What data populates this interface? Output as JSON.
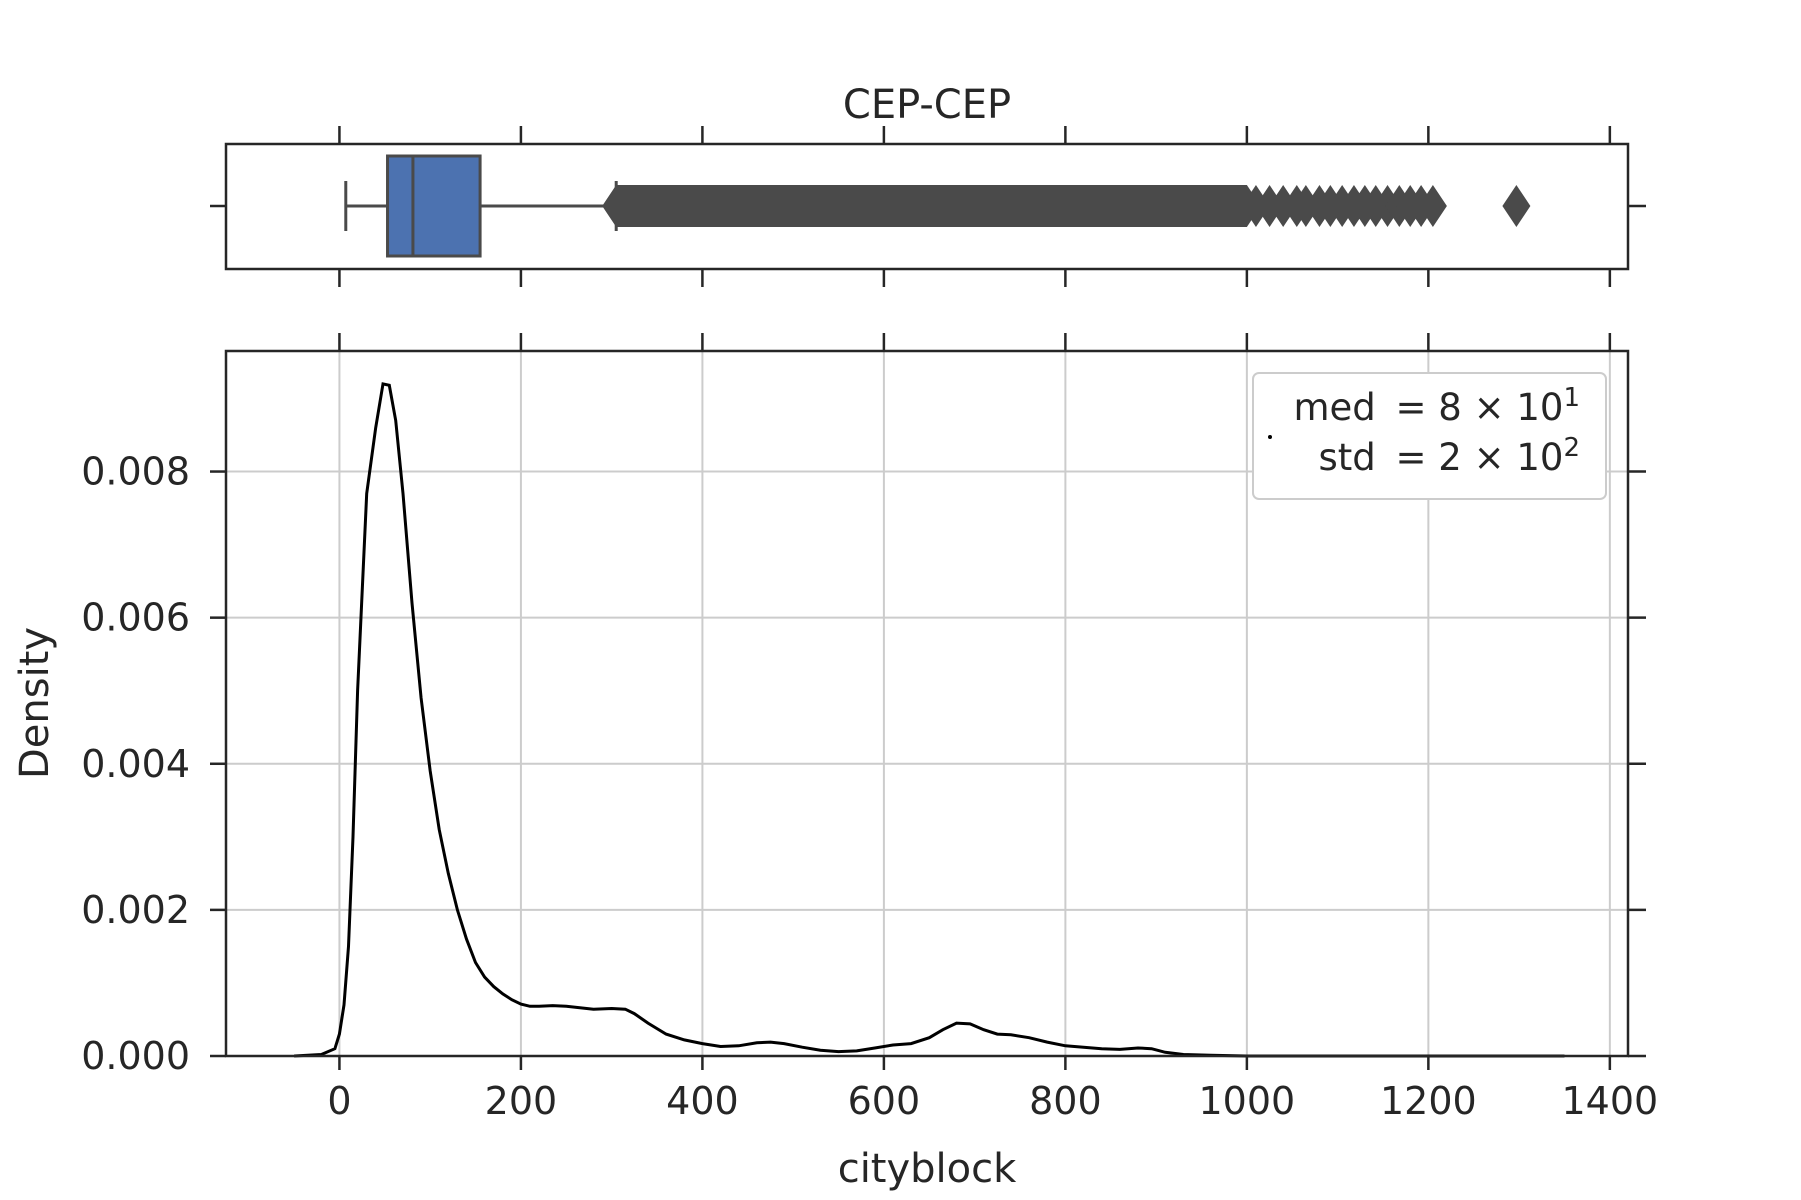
{
  "chart_data": {
    "type": "box-kde",
    "title": "CEP-CEP",
    "xlabel": "cityblock",
    "ylabel": "Density",
    "xlim": [
      -125,
      1420
    ],
    "ylim": [
      0,
      0.00965
    ],
    "x_ticks": [
      0,
      200,
      400,
      600,
      800,
      1000,
      1200,
      1400
    ],
    "y_ticks": [
      0.0,
      0.002,
      0.004,
      0.006,
      0.008
    ],
    "x_tick_labels": [
      "0",
      "200",
      "400",
      "600",
      "800",
      "1000",
      "1200",
      "1400"
    ],
    "y_tick_labels": [
      "0.000",
      "0.002",
      "0.004",
      "0.006",
      "0.008"
    ],
    "grid": true,
    "legend": {
      "placement": "top-right",
      "med": {
        "label": "med",
        "mantissa": "8",
        "exponent": "1"
      },
      "std": {
        "label": "std",
        "mantissa": "2",
        "exponent": "2"
      }
    },
    "boxplot": {
      "color": "#4c72b0",
      "whisker_low": 7,
      "q1": 53,
      "median": 81,
      "q3": 155,
      "whisker_high": 305,
      "outlier_band": [
        305,
        1000
      ],
      "outliers": [
        1010,
        1025,
        1040,
        1055,
        1065,
        1080,
        1092,
        1105,
        1118,
        1130,
        1142,
        1155,
        1168,
        1180,
        1192,
        1205,
        1297
      ]
    },
    "kde": {
      "x": [
        -50,
        -20,
        -5,
        0,
        5,
        10,
        15,
        20,
        30,
        40,
        48,
        55,
        62,
        70,
        80,
        90,
        100,
        110,
        120,
        130,
        140,
        150,
        160,
        170,
        180,
        190,
        200,
        210,
        220,
        235,
        250,
        265,
        280,
        300,
        315,
        325,
        340,
        360,
        380,
        400,
        420,
        440,
        460,
        475,
        490,
        510,
        530,
        550,
        570,
        590,
        610,
        630,
        650,
        665,
        680,
        695,
        710,
        725,
        740,
        760,
        780,
        800,
        820,
        840,
        860,
        880,
        895,
        910,
        930,
        960,
        1000,
        1100,
        1200,
        1300,
        1350
      ],
      "y": [
        0.0,
        2e-05,
        0.0001,
        0.0003,
        0.0007,
        0.0015,
        0.003,
        0.005,
        0.0077,
        0.0086,
        0.0092,
        0.00918,
        0.0087,
        0.0077,
        0.0062,
        0.0049,
        0.0039,
        0.0031,
        0.0025,
        0.002,
        0.0016,
        0.00128,
        0.00108,
        0.00095,
        0.00085,
        0.00077,
        0.00071,
        0.00068,
        0.00068,
        0.00069,
        0.00068,
        0.00066,
        0.00064,
        0.00065,
        0.00064,
        0.00058,
        0.00045,
        0.0003,
        0.00022,
        0.00017,
        0.00013,
        0.00014,
        0.00018,
        0.00019,
        0.00017,
        0.00012,
        8e-05,
        6e-05,
        7e-05,
        0.00011,
        0.00015,
        0.00017,
        0.00025,
        0.00036,
        0.00045,
        0.00044,
        0.00036,
        0.0003,
        0.00029,
        0.00025,
        0.00019,
        0.00014,
        0.00012,
        0.0001,
        9e-05,
        0.00011,
        0.0001,
        5e-05,
        2e-05,
        1e-05,
        0.0,
        0.0,
        0.0,
        0.0,
        0.0
      ]
    }
  }
}
